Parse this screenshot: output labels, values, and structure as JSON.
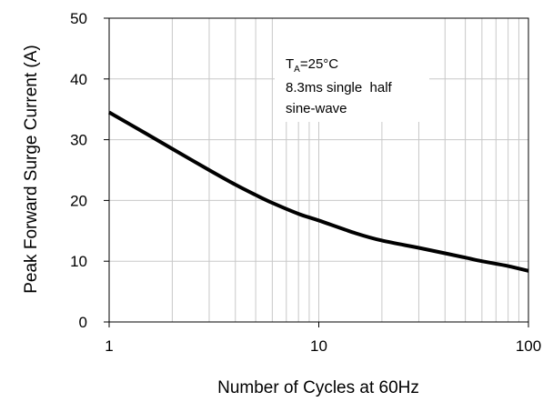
{
  "chart_data": {
    "type": "line",
    "xscale": "log",
    "xlim": [
      1,
      100
    ],
    "ylim": [
      0,
      50
    ],
    "xticks": [
      1,
      10,
      100
    ],
    "xtick_labels": [
      "1",
      "10",
      "100"
    ],
    "yticks": [
      0,
      10,
      20,
      30,
      40,
      50
    ],
    "ytick_labels": [
      "0",
      "10",
      "20",
      "30",
      "40",
      "50"
    ],
    "xlabel": "Number of Cycles at 60Hz",
    "ylabel": "Peak Forward Surge Current (A)",
    "grid": true,
    "annotation": {
      "t_main": "T",
      "t_sub": "A",
      "t_rest": "=25°C",
      "line2": "8.3ms single  half",
      "line3": "sine-wave"
    },
    "series": [
      {
        "x": [
          1,
          1.5,
          2,
          3,
          4,
          5,
          6,
          8,
          10,
          15,
          20,
          30,
          40,
          50,
          60,
          80,
          100
        ],
        "y": [
          34.5,
          31.0,
          28.5,
          25.0,
          22.6,
          20.9,
          19.6,
          17.8,
          16.7,
          14.6,
          13.4,
          12.2,
          11.3,
          10.6,
          10.0,
          9.2,
          8.4
        ]
      }
    ]
  },
  "colors": {
    "curve": "#000000",
    "grid": "#c8c8c8",
    "axis": "#000000"
  }
}
